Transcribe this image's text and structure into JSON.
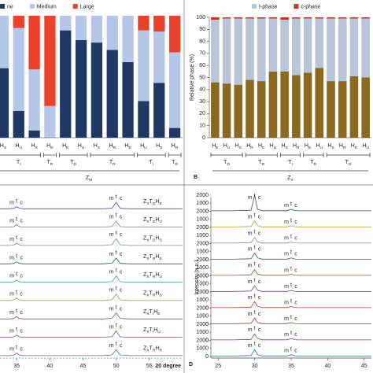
{
  "chart_data": [
    {
      "type": "stacked_bar",
      "categories": [
        "HS",
        "HU",
        "HS",
        "HR",
        "HE",
        "HU",
        "HS",
        "HR",
        "HE",
        "HU",
        "HS",
        "HR"
      ],
      "groups": [
        {
          "label": "TI",
          "size": 3
        },
        {
          "label": "TR",
          "size": 1
        },
        {
          "label": "TD",
          "size": 2
        },
        {
          "label": "TR",
          "size": 3
        },
        {
          "label": "TI",
          "size": 2
        },
        {
          "label": "TR",
          "size": 1
        }
      ],
      "zone": "ZM",
      "ylim": [
        0,
        100
      ],
      "series": [
        {
          "name": "ne",
          "color": "#1f3864",
          "values": [
            57,
            22,
            6,
            0,
            88,
            80,
            78,
            72,
            62,
            30,
            45,
            8
          ]
        },
        {
          "name": "Medium",
          "color": "#b4c7e7",
          "values": [
            43,
            68,
            50,
            26,
            12,
            20,
            22,
            28,
            38,
            58,
            42,
            62
          ]
        },
        {
          "name": "Large",
          "color": "#e8412c",
          "values": [
            0,
            10,
            44,
            74,
            0,
            0,
            0,
            0,
            0,
            12,
            13,
            30
          ]
        }
      ]
    },
    {
      "type": "stacked_bar",
      "panel": "B",
      "ylabel": "Relative phase (%)",
      "categories": [
        "HE",
        "HU",
        "HS",
        "HR",
        "HE",
        "HU",
        "HS",
        "HR",
        "HE",
        "HU",
        "HS",
        "HR",
        "HE",
        "HU"
      ],
      "groups": [
        {
          "label": "TD",
          "size": 3
        },
        {
          "label": "TR",
          "size": 3
        },
        {
          "label": "TI",
          "size": 2
        },
        {
          "label": "TR",
          "size": 2
        },
        {
          "label": "TD",
          "size": 4
        }
      ],
      "zone": "ZX",
      "ylim": [
        0,
        100
      ],
      "yticks": [
        0,
        10,
        20,
        30,
        40,
        50,
        60,
        70,
        80,
        90,
        100
      ],
      "series": [
        {
          "color": "#8b6a1f",
          "values": [
            46,
            45,
            44,
            48,
            47,
            55,
            55,
            52,
            54,
            58,
            47,
            47,
            51,
            50
          ]
        },
        {
          "name": "t-phase",
          "color": "#b8c4d8",
          "values": [
            52,
            54,
            55,
            51,
            52,
            44,
            43,
            47,
            45,
            41,
            52,
            52,
            48,
            49
          ]
        },
        {
          "name": "c-phase",
          "color": "#c0392b",
          "values": [
            2,
            1,
            1,
            1,
            1,
            1,
            2,
            1,
            1,
            1,
            1,
            1,
            1,
            1
          ]
        }
      ]
    },
    {
      "type": "xrd_strips",
      "xlabel": "20 degree",
      "xlim": [
        32.5,
        60
      ],
      "xticks": [
        35,
        40,
        45,
        50,
        55
      ],
      "ylim": [
        0,
        100
      ],
      "peak_labels": [
        "m",
        "t",
        "c"
      ],
      "x": [
        32.5,
        34,
        34.6,
        35,
        35.4,
        36,
        48,
        49.4,
        50,
        50.6,
        52,
        60
      ],
      "series": [
        {
          "name": "ZXTDHE",
          "color": "#3b5ba5",
          "values": [
            5,
            5,
            8,
            18,
            9,
            5,
            5,
            9,
            44,
            8,
            5,
            5
          ]
        },
        {
          "name": "ZXTDHU",
          "color": "#7f7f7f",
          "values": [
            5,
            5,
            8,
            20,
            8,
            5,
            5,
            9,
            42,
            8,
            5,
            5
          ]
        },
        {
          "name": "ZXTDHS",
          "color": "#6d8fb3",
          "values": [
            5,
            5,
            9,
            19,
            9,
            5,
            5,
            10,
            46,
            9,
            5,
            5
          ]
        },
        {
          "name": "ZXTRHE",
          "color": "#2f5f3f",
          "values": [
            5,
            5,
            8,
            17,
            8,
            5,
            5,
            9,
            40,
            8,
            5,
            5
          ]
        },
        {
          "name": "ZXTRHU",
          "color": "#3a9a9a",
          "values": [
            5,
            5,
            8,
            18,
            8,
            5,
            5,
            9,
            43,
            8,
            5,
            5
          ]
        },
        {
          "name": "ZXTRHS",
          "color": "#7aa05a",
          "values": [
            5,
            5,
            9,
            21,
            9,
            5,
            5,
            10,
            45,
            9,
            5,
            5
          ]
        },
        {
          "name": "ZXTIHE",
          "color": "#7b4fa0",
          "values": [
            5,
            5,
            8,
            19,
            8,
            5,
            5,
            9,
            41,
            8,
            5,
            5
          ]
        },
        {
          "name": "ZXTIHU",
          "color": "#6b4f9a",
          "values": [
            5,
            5,
            8,
            18,
            8,
            5,
            5,
            9,
            44,
            8,
            5,
            5
          ]
        },
        {
          "name": "ZXTRHR",
          "color": "#5f6f8f",
          "values": [
            5,
            5,
            8,
            20,
            9,
            5,
            5,
            10,
            42,
            9,
            5,
            5
          ]
        }
      ]
    },
    {
      "type": "xrd_strips",
      "panel": "D",
      "ylabel": "Intensity (a.u.)",
      "xlim": [
        24,
        46
      ],
      "xticks": [
        25,
        30,
        35,
        40,
        45
      ],
      "ylim": [
        0,
        2000
      ],
      "yticks": [
        0,
        1000,
        2000
      ],
      "peak_labels": [
        "m",
        "t",
        "c"
      ],
      "x": [
        24,
        27,
        29.5,
        30,
        30.4,
        31,
        34.4,
        35,
        35.5,
        36,
        46
      ],
      "series": [
        {
          "color": "#2e5e2e",
          "values": [
            60,
            60,
            130,
            2000,
            250,
            70,
            70,
            230,
            100,
            60,
            60
          ]
        },
        {
          "color": "#a7a52a",
          "values": [
            60,
            60,
            120,
            800,
            220,
            70,
            70,
            200,
            90,
            60,
            60
          ]
        },
        {
          "color": "#8a8a8a",
          "values": [
            60,
            60,
            120,
            750,
            210,
            70,
            70,
            190,
            90,
            60,
            60
          ]
        },
        {
          "color": "#3a4f9a",
          "values": [
            60,
            60,
            120,
            820,
            220,
            70,
            70,
            210,
            90,
            60,
            60
          ]
        },
        {
          "color": "#8a5a3a",
          "values": [
            60,
            60,
            120,
            780,
            210,
            70,
            70,
            200,
            90,
            60,
            60
          ]
        },
        {
          "color": "#7a3a8a",
          "values": [
            60,
            60,
            120,
            760,
            210,
            70,
            70,
            190,
            90,
            60,
            60
          ]
        },
        {
          "color": "#c0392b",
          "values": [
            60,
            60,
            120,
            800,
            220,
            70,
            70,
            200,
            90,
            60,
            60
          ]
        },
        {
          "color": "#8a4a2a",
          "values": [
            60,
            60,
            120,
            770,
            210,
            70,
            70,
            200,
            90,
            60,
            60
          ]
        },
        {
          "color": "#8a3a9a",
          "values": [
            60,
            60,
            120,
            790,
            220,
            70,
            70,
            210,
            90,
            60,
            60
          ]
        },
        {
          "color": "#2a6aaa",
          "values": [
            60,
            60,
            120,
            850,
            230,
            70,
            70,
            220,
            90,
            60,
            60
          ]
        }
      ]
    }
  ]
}
